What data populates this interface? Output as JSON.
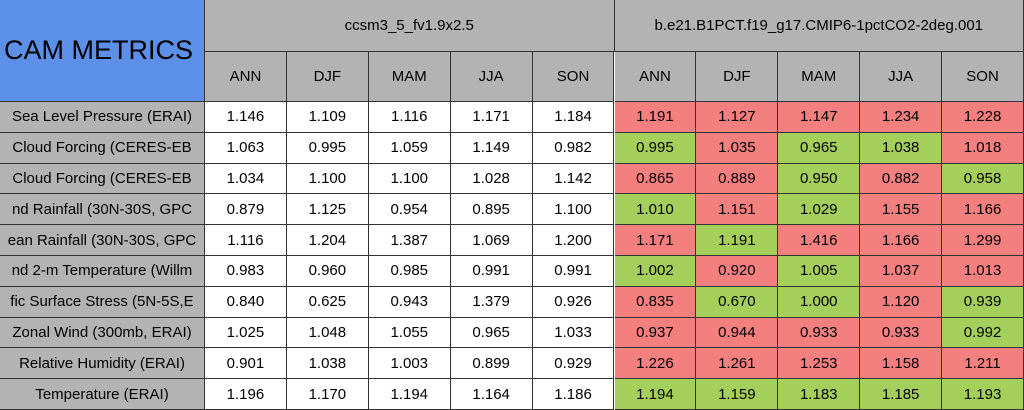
{
  "table": {
    "title": "CAM METRICS",
    "groups": [
      "ccsm3_5_fv1.9x2.5",
      "b.e21.B1PCT.f19_g17.CMIP6-1pctCO2-2deg.001"
    ],
    "seasons": [
      "ANN",
      "DJF",
      "MAM",
      "JJA",
      "SON"
    ],
    "rows": [
      {
        "label": "Sea Level Pressure (ERAI)",
        "control": [
          "1.146",
          "1.109",
          "1.116",
          "1.171",
          "1.184"
        ],
        "case": [
          "1.191",
          "1.127",
          "1.147",
          "1.234",
          "1.228"
        ],
        "case_colors": [
          "#f47f7f",
          "#f47f7f",
          "#f47f7f",
          "#f47f7f",
          "#f47f7f"
        ]
      },
      {
        "label": "Cloud Forcing (CERES-EB",
        "control": [
          "1.063",
          "0.995",
          "1.059",
          "1.149",
          "0.982"
        ],
        "case": [
          "0.995",
          "1.035",
          "0.965",
          "1.038",
          "1.018"
        ],
        "case_colors": [
          "#a4cf5a",
          "#f47f7f",
          "#a4cf5a",
          "#a4cf5a",
          "#f47f7f"
        ]
      },
      {
        "label": "Cloud Forcing (CERES-EB",
        "control": [
          "1.034",
          "1.100",
          "1.100",
          "1.028",
          "1.142"
        ],
        "case": [
          "0.865",
          "0.889",
          "0.950",
          "0.882",
          "0.958"
        ],
        "case_colors": [
          "#f47f7f",
          "#f47f7f",
          "#a4cf5a",
          "#f47f7f",
          "#a4cf5a"
        ]
      },
      {
        "label": "nd Rainfall (30N-30S, GPC",
        "control": [
          "0.879",
          "1.125",
          "0.954",
          "0.895",
          "1.100"
        ],
        "case": [
          "1.010",
          "1.151",
          "1.029",
          "1.155",
          "1.166"
        ],
        "case_colors": [
          "#a4cf5a",
          "#f47f7f",
          "#a4cf5a",
          "#f47f7f",
          "#f47f7f"
        ]
      },
      {
        "label": "ean Rainfall (30N-30S, GPC",
        "control": [
          "1.116",
          "1.204",
          "1.387",
          "1.069",
          "1.200"
        ],
        "case": [
          "1.171",
          "1.191",
          "1.416",
          "1.166",
          "1.299"
        ],
        "case_colors": [
          "#f47f7f",
          "#a4cf5a",
          "#f47f7f",
          "#f47f7f",
          "#f47f7f"
        ]
      },
      {
        "label": "nd 2-m Temperature (Willm",
        "control": [
          "0.983",
          "0.960",
          "0.985",
          "0.991",
          "0.991"
        ],
        "case": [
          "1.002",
          "0.920",
          "1.005",
          "1.037",
          "1.013"
        ],
        "case_colors": [
          "#a4cf5a",
          "#f47f7f",
          "#a4cf5a",
          "#f47f7f",
          "#f47f7f"
        ]
      },
      {
        "label": "fic Surface Stress (5N-5S,E",
        "control": [
          "0.840",
          "0.625",
          "0.943",
          "1.379",
          "0.926"
        ],
        "case": [
          "0.835",
          "0.670",
          "1.000",
          "1.120",
          "0.939"
        ],
        "case_colors": [
          "#f47f7f",
          "#a4cf5a",
          "#a4cf5a",
          "#f47f7f",
          "#a4cf5a"
        ]
      },
      {
        "label": "Zonal Wind (300mb, ERAI)",
        "control": [
          "1.025",
          "1.048",
          "1.055",
          "0.965",
          "1.033"
        ],
        "case": [
          "0.937",
          "0.944",
          "0.933",
          "0.933",
          "0.992"
        ],
        "case_colors": [
          "#f47f7f",
          "#f47f7f",
          "#f47f7f",
          "#f47f7f",
          "#a4cf5a"
        ]
      },
      {
        "label": "Relative Humidity (ERAI)",
        "control": [
          "0.901",
          "1.038",
          "1.003",
          "0.899",
          "0.929"
        ],
        "case": [
          "1.226",
          "1.261",
          "1.253",
          "1.158",
          "1.211"
        ],
        "case_colors": [
          "#f47f7f",
          "#f47f7f",
          "#f47f7f",
          "#f47f7f",
          "#f47f7f"
        ]
      },
      {
        "label": "Temperature (ERAI)",
        "control": [
          "1.196",
          "1.170",
          "1.194",
          "1.164",
          "1.186"
        ],
        "case": [
          "1.194",
          "1.159",
          "1.183",
          "1.185",
          "1.193"
        ],
        "case_colors": [
          "#a4cf5a",
          "#a4cf5a",
          "#a4cf5a",
          "#a4cf5a",
          "#a4cf5a"
        ]
      }
    ]
  }
}
